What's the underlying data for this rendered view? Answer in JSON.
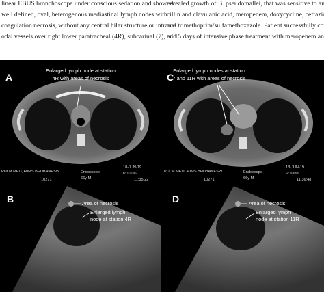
{
  "text": {
    "left": [
      "linear EBUS bronchoscope under conscious sedation and showed",
      "well defined, oval, heterogenous mediastinal lymph nodes with",
      "coagulation necrosis, without any central hilar structure or intrana-",
      "odal vessels over right lower paratracheal (4R), subcarinal (7), and"
    ],
    "right": [
      "revealed growth of B. pseudomallei, that was sensitive to amoxi-",
      "cillin and clavulanic acid, meropenem, doxycycline, ceftazidime",
      "and trimethoprim/sulfamethoxazole. Patient successfully complet-",
      "ed 15 days of intensive phase treatment with meropenem and"
    ]
  },
  "panels": [
    {
      "label": "A",
      "annotation": [
        "Enlarged lymph node at station",
        "4R with areas of necrosis"
      ],
      "overlay": [
        "PULM MED, AIIMS BHUBANESW",
        "10271",
        "Endoscope",
        "66y M",
        "18-JUN-19",
        "P:100%",
        "11:35:22"
      ]
    },
    {
      "label": "C",
      "annotation": [
        "Enlarged lymph nodes at station",
        "7 and 11R with areas of necrosis"
      ],
      "overlay": [
        "PULM MED, AIIMS BHUBANESW",
        "10271",
        "Endoscope",
        "66y M",
        "18-JUN-19",
        "P:100%",
        "11:36:48"
      ]
    },
    {
      "label": "B",
      "annotation": [
        "Area of necrosis",
        "Enlarged lymph",
        "node at station 4R"
      ]
    },
    {
      "label": "D",
      "annotation": [
        "Area of necrosis",
        "Enlarged lymph",
        "node at station 11R"
      ]
    }
  ]
}
